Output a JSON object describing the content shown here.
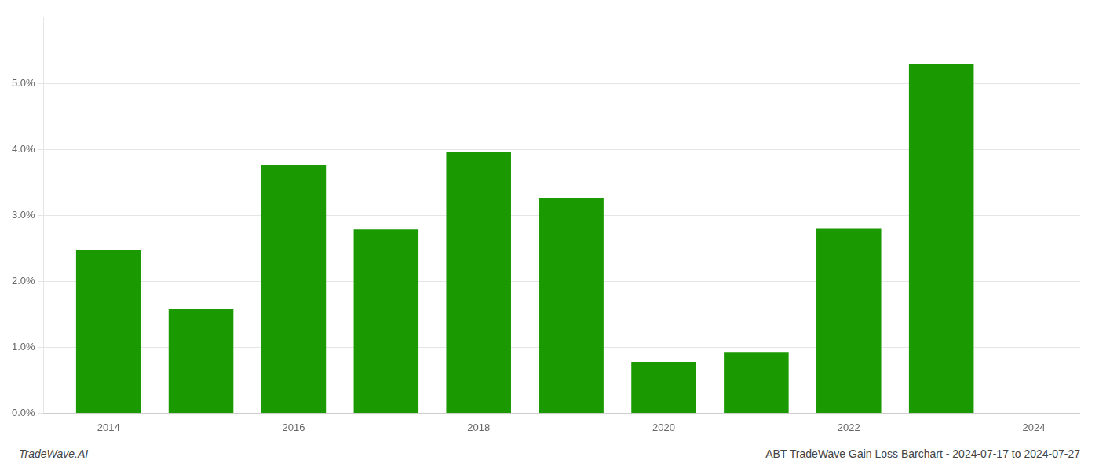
{
  "chart_data": {
    "type": "bar",
    "x": [
      2014,
      2015,
      2016,
      2017,
      2018,
      2019,
      2020,
      2021,
      2022,
      2023
    ],
    "values": [
      0.0248,
      0.0159,
      0.0377,
      0.0279,
      0.0397,
      0.0327,
      0.0078,
      0.0092,
      0.028,
      0.053
    ],
    "color": "#1a9a00",
    "xlim": [
      2013.3,
      2024.5
    ],
    "xticks": [
      2014,
      2016,
      2018,
      2020,
      2022,
      2024
    ],
    "ylim": [
      0,
      0.06
    ],
    "yticks": [
      {
        "value": 0.0,
        "label": "0.0%"
      },
      {
        "value": 0.01,
        "label": "1.0%"
      },
      {
        "value": 0.02,
        "label": "2.0%"
      },
      {
        "value": 0.03,
        "label": "3.0%"
      },
      {
        "value": 0.04,
        "label": "4.0%"
      },
      {
        "value": 0.05,
        "label": "5.0%"
      }
    ],
    "grid": "y",
    "annotations": [
      {
        "text": "TradeWave.AI"
      },
      {
        "text": "ABT TradeWave Gain Loss Barchart - 2024-07-17 to 2024-07-27"
      }
    ]
  }
}
